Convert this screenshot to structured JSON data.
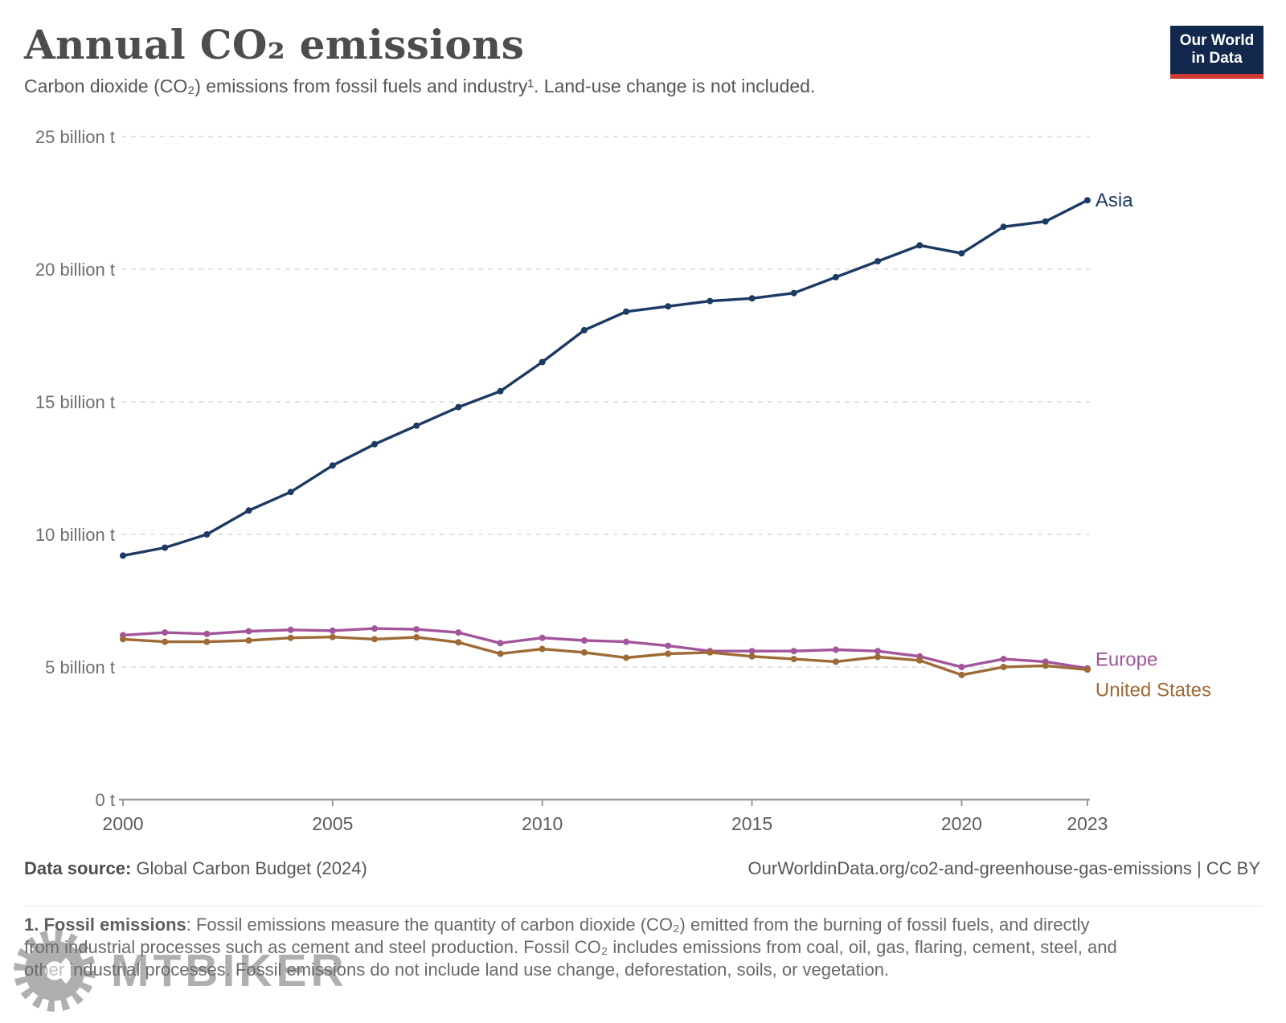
{
  "header": {
    "title": "Annual CO₂ emissions",
    "subtitle": "Carbon dioxide (CO₂) emissions from fossil fuels and industry¹. Land-use change is not included."
  },
  "logo": {
    "line1": "Our World",
    "line2": "in Data",
    "bg_color": "#12294d",
    "accent_color": "#cf3a31"
  },
  "chart_data": {
    "type": "line",
    "title": "Annual CO₂ emissions",
    "xlabel": "",
    "ylabel": "",
    "unit": "billion t",
    "xlim": [
      2000,
      2023
    ],
    "ylim": [
      0,
      25
    ],
    "grid": "horizontal-dashed",
    "legend_position": "end-of-line",
    "x": [
      2000,
      2001,
      2002,
      2003,
      2004,
      2005,
      2006,
      2007,
      2008,
      2009,
      2010,
      2011,
      2012,
      2013,
      2014,
      2015,
      2016,
      2017,
      2018,
      2019,
      2020,
      2021,
      2022,
      2023
    ],
    "xticks": [
      2000,
      2005,
      2010,
      2015,
      2020,
      2023
    ],
    "yticks": [
      {
        "value": 0,
        "label": "0 t"
      },
      {
        "value": 5,
        "label": "5 billion t"
      },
      {
        "value": 10,
        "label": "10 billion t"
      },
      {
        "value": 15,
        "label": "15 billion t"
      },
      {
        "value": 20,
        "label": "20 billion t"
      },
      {
        "value": 25,
        "label": "25 billion t"
      }
    ],
    "series": [
      {
        "name": "Asia",
        "color": "#1c3a63",
        "label_dy": 0,
        "values": [
          9.2,
          9.5,
          10.0,
          10.9,
          11.6,
          12.6,
          13.4,
          14.1,
          14.8,
          15.4,
          16.5,
          17.7,
          18.4,
          18.6,
          18.8,
          18.9,
          19.1,
          19.7,
          20.3,
          20.9,
          20.6,
          21.6,
          21.8,
          22.6
        ]
      },
      {
        "name": "Europe",
        "color": "#a2559c",
        "label_dy": -11,
        "values": [
          6.2,
          6.3,
          6.25,
          6.35,
          6.4,
          6.37,
          6.45,
          6.42,
          6.3,
          5.9,
          6.1,
          6.0,
          5.95,
          5.8,
          5.6,
          5.6,
          5.6,
          5.65,
          5.6,
          5.4,
          5.0,
          5.3,
          5.2,
          4.95
        ]
      },
      {
        "name": "United States",
        "color": "#9e6b36",
        "label_dy": 25,
        "values": [
          6.05,
          5.95,
          5.95,
          6.0,
          6.1,
          6.13,
          6.05,
          6.12,
          5.93,
          5.5,
          5.68,
          5.55,
          5.35,
          5.5,
          5.55,
          5.4,
          5.3,
          5.2,
          5.38,
          5.25,
          4.7,
          5.0,
          5.05,
          4.9
        ]
      }
    ]
  },
  "footer": {
    "source_label": "Data source:",
    "source_value": "Global Carbon Budget (2024)",
    "attribution": "OurWorldinData.org/co2-and-greenhouse-gas-emissions | CC BY"
  },
  "footnote": {
    "lead": "1. Fossil emissions",
    "rest": ": Fossil emissions measure the quantity of carbon dioxide (CO₂) emitted from the burning of fossil fuels, and directly from industrial processes such as cement and steel production. Fossil CO₂ includes emissions from coal, oil, gas, flaring, cement, steel, and other industrial processes. Fossil emissions do not include land use change, deforestation, soils, or vegetation."
  },
  "watermark": {
    "text": "MTBIKER"
  }
}
